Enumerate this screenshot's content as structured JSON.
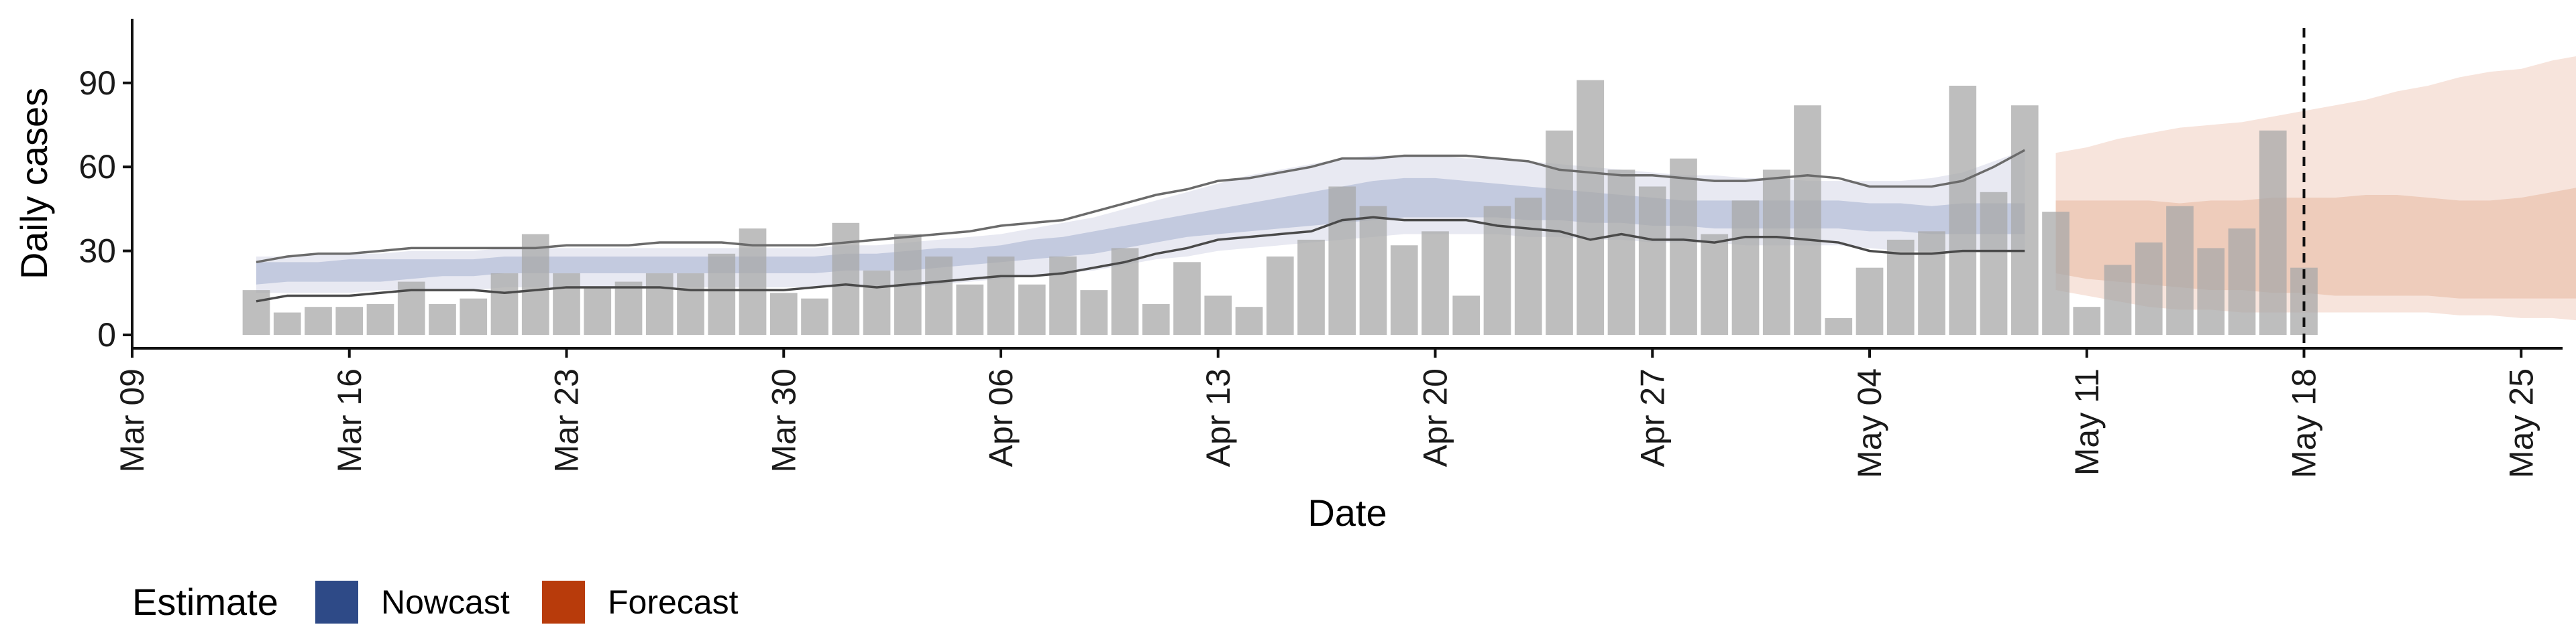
{
  "chart_data": {
    "type": "bar",
    "xlabel": "Date",
    "ylabel": "Daily cases",
    "ylim": [
      0,
      113
    ],
    "x_ticks": [
      "Mar 09",
      "Mar 16",
      "Mar 23",
      "Mar 30",
      "Apr 06",
      "Apr 13",
      "Apr 20",
      "Apr 27",
      "May 04",
      "May 11",
      "May 18",
      "May 25"
    ],
    "y_ticks": [
      "0",
      "30",
      "60",
      "90"
    ],
    "x_start_date": "2020-03-09",
    "x_end_date": "2020-05-26",
    "vline_date": "2020-05-18",
    "observed": {
      "start_date": "2020-03-13",
      "values": [
        16,
        8,
        10,
        10,
        11,
        19,
        11,
        13,
        22,
        36,
        22,
        17,
        19,
        22,
        22,
        29,
        38,
        15,
        13,
        40,
        23,
        36,
        28,
        18,
        28,
        18,
        28,
        16,
        31,
        11,
        26,
        14,
        10,
        28,
        34,
        53,
        46,
        32,
        37,
        14,
        46,
        49,
        73,
        91,
        59,
        53,
        63,
        36,
        48,
        59,
        82,
        6,
        24,
        34,
        37,
        89,
        51,
        82,
        44,
        10,
        25,
        33,
        46,
        31,
        38,
        73,
        24
      ]
    },
    "legend": {
      "title": "Estimate",
      "entries": [
        {
          "label": "Nowcast",
          "color": "#2e4a87"
        },
        {
          "label": "Forecast",
          "color": "#b83b0b"
        }
      ]
    },
    "nowcast": {
      "start_date": "2020-03-13",
      "inner_lower": [
        18,
        19,
        19,
        19,
        19,
        20,
        21,
        21,
        22,
        22,
        22,
        22,
        22,
        22,
        22,
        22,
        22,
        22,
        22,
        23,
        23,
        23,
        24,
        25,
        26,
        27,
        28,
        29,
        31,
        33,
        35,
        36,
        37,
        38,
        39,
        40,
        41,
        42,
        42,
        42,
        42,
        41,
        41,
        40,
        40,
        39,
        39,
        38,
        38,
        38,
        38,
        38,
        37,
        37,
        36,
        36,
        36,
        36
      ],
      "inner_upper": [
        26,
        26,
        26,
        27,
        27,
        27,
        27,
        27,
        28,
        28,
        28,
        28,
        28,
        28,
        28,
        28,
        28,
        28,
        28,
        29,
        29,
        30,
        31,
        31,
        32,
        34,
        35,
        37,
        39,
        41,
        43,
        45,
        47,
        49,
        51,
        53,
        55,
        56,
        56,
        55,
        54,
        53,
        52,
        51,
        50,
        49,
        48,
        48,
        48,
        48,
        48,
        48,
        47,
        47,
        46,
        47,
        47,
        47
      ],
      "outer_lower": [
        15,
        15,
        15,
        15,
        16,
        16,
        16,
        16,
        17,
        17,
        17,
        17,
        17,
        17,
        17,
        17,
        17,
        17,
        17,
        17,
        17,
        17,
        18,
        19,
        20,
        21,
        22,
        23,
        25,
        27,
        28,
        30,
        31,
        32,
        33,
        34,
        35,
        36,
        36,
        36,
        36,
        35,
        35,
        34,
        34,
        33,
        33,
        33,
        32,
        32,
        32,
        32,
        31,
        30,
        30,
        30,
        30,
        30
      ],
      "outer_upper": [
        28,
        28,
        29,
        29,
        29,
        30,
        30,
        30,
        31,
        31,
        31,
        31,
        31,
        31,
        31,
        31,
        31,
        31,
        31,
        32,
        32,
        33,
        34,
        35,
        36,
        38,
        40,
        42,
        45,
        48,
        51,
        54,
        57,
        59,
        61,
        63,
        64,
        64,
        64,
        63,
        63,
        62,
        61,
        60,
        59,
        58,
        57,
        57,
        56,
        56,
        55,
        55,
        55,
        55,
        56,
        58,
        62,
        66
      ]
    },
    "lines": {
      "start_date": "2020-03-13",
      "upper": [
        26,
        28,
        29,
        29,
        30,
        31,
        31,
        31,
        31,
        31,
        32,
        32,
        32,
        33,
        33,
        33,
        32,
        32,
        32,
        33,
        34,
        35,
        36,
        37,
        39,
        40,
        41,
        44,
        47,
        50,
        52,
        55,
        56,
        58,
        60,
        63,
        63,
        64,
        64,
        64,
        63,
        62,
        59,
        58,
        57,
        57,
        56,
        55,
        55,
        56,
        57,
        56,
        53,
        53,
        53,
        55,
        60,
        66
      ],
      "lower": [
        12,
        14,
        14,
        14,
        15,
        16,
        16,
        16,
        15,
        16,
        17,
        17,
        17,
        17,
        16,
        16,
        16,
        16,
        17,
        18,
        17,
        18,
        19,
        20,
        21,
        21,
        22,
        24,
        26,
        29,
        31,
        34,
        35,
        36,
        37,
        41,
        42,
        41,
        41,
        41,
        39,
        38,
        37,
        34,
        36,
        34,
        34,
        33,
        35,
        35,
        34,
        33,
        30,
        29,
        29,
        30,
        30,
        30
      ]
    },
    "forecast": {
      "start_date": "2020-05-10",
      "inner_lower": [
        22,
        20,
        19,
        18,
        17,
        16,
        16,
        15,
        15,
        14,
        14,
        14,
        14,
        13,
        13,
        13,
        13,
        13,
        13,
        13,
        13
      ],
      "inner_upper": [
        48,
        48,
        48,
        48,
        47,
        48,
        48,
        49,
        49,
        49,
        50,
        50,
        49,
        48,
        48,
        49,
        51,
        53,
        50,
        48,
        48
      ],
      "outer_lower": [
        16,
        14,
        12,
        10,
        9,
        9,
        8,
        8,
        8,
        8,
        8,
        8,
        8,
        7,
        7,
        6,
        6,
        5,
        5,
        5,
        5
      ],
      "outer_upper": [
        65,
        67,
        70,
        72,
        74,
        75,
        76,
        78,
        80,
        82,
        84,
        87,
        89,
        92,
        94,
        95,
        98,
        100,
        102,
        105,
        107
      ]
    }
  }
}
